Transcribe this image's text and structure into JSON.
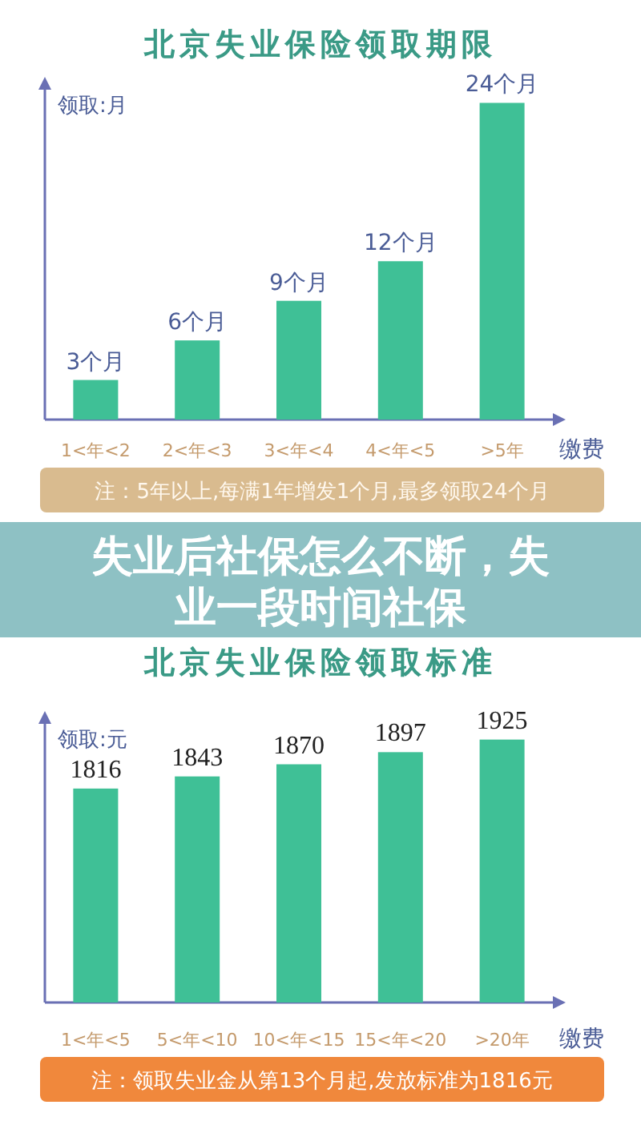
{
  "chart_data": [
    {
      "type": "bar",
      "title": "北京失业保险领取期限",
      "ylabel": "领取:月",
      "xlabel": "缴费",
      "categories": [
        "1<年<2",
        "2<年<3",
        "3<年<4",
        "4<年<5",
        ">5年"
      ],
      "values": [
        3,
        6,
        9,
        12,
        24
      ],
      "value_labels": [
        "3个月",
        "6个月",
        "9个月",
        "12个月",
        "24个月"
      ],
      "color": "#3fc096",
      "ylim": [
        0,
        25
      ],
      "annotations": [
        "注：5年以上,每满1年增发1个月,最多领取24个月",
        "失业后社保怎么不断，失业一段时间社保"
      ]
    },
    {
      "type": "bar",
      "title": "北京失业保险领取标准",
      "ylabel": "领取:元",
      "xlabel": "缴费",
      "categories": [
        "1<年<5",
        "5<年<10",
        "10<年<15",
        "15<年<20",
        ">20年"
      ],
      "values": [
        1816,
        1843,
        1870,
        1897,
        1925
      ],
      "data_labels": true,
      "color": "#3fc096",
      "ylim": [
        1340,
        1960
      ],
      "annotations": [
        "注：领取失业金从第13个月起,发放标准为1816元"
      ]
    }
  ]
}
